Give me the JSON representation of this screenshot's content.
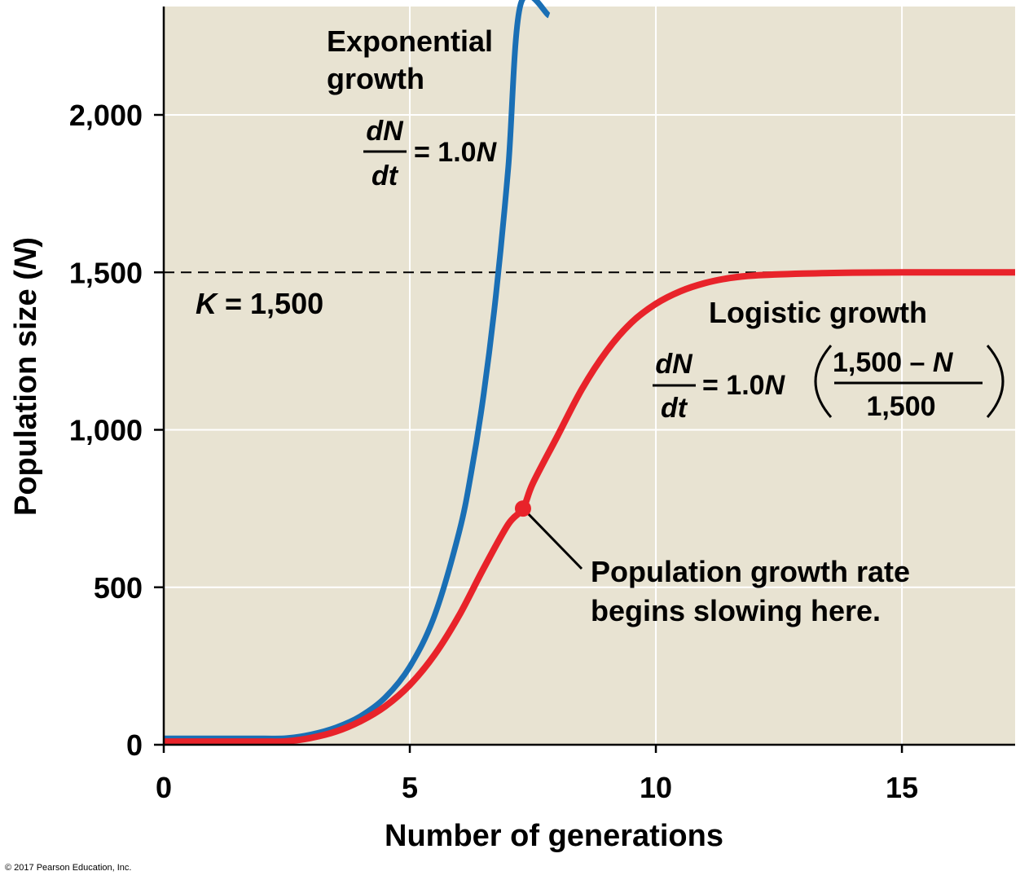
{
  "chart_data": {
    "type": "line",
    "xlabel": "Number of generations",
    "ylabel_main": "Population size (",
    "ylabel_var": "N",
    "ylabel_close": ")",
    "xlim": [
      0,
      17.3
    ],
    "ylim": [
      0,
      2400
    ],
    "x_ticks": [
      0,
      5,
      10,
      15
    ],
    "x_tick_labels": [
      "0",
      "5",
      "10",
      "15"
    ],
    "y_ticks": [
      0,
      500,
      1000,
      1500,
      2000
    ],
    "y_tick_labels": [
      "0",
      "500",
      "1,000",
      "1,500",
      "2,000"
    ],
    "grid": true,
    "series": [
      {
        "name": "Exponential growth",
        "color": "#1a6fb5",
        "x": [
          0,
          1,
          2,
          2.5,
          3,
          3.5,
          4,
          4.5,
          5,
          5.5,
          6,
          6.25,
          6.5,
          6.75,
          7,
          7.25,
          7.5,
          7.75,
          7.8
        ],
        "y": [
          20,
          20,
          20,
          21,
          33,
          55,
          91,
          150,
          248,
          409,
          674,
          866,
          1112,
          1428,
          1832,
          2350,
          2300,
          2310,
          2315
        ]
      },
      {
        "name": "Logistic growth",
        "color": "#e8232a",
        "x": [
          0,
          1,
          2,
          2.5,
          3,
          3.5,
          4,
          4.5,
          5,
          5.5,
          6,
          6.5,
          7,
          7.3,
          7.5,
          8,
          8.5,
          9,
          9.5,
          10,
          10.5,
          11,
          11.5,
          12,
          13,
          14,
          15,
          16,
          17.3
        ],
        "y": [
          10,
          10,
          10,
          11,
          22,
          42,
          75,
          122,
          190,
          285,
          410,
          560,
          700,
          750,
          830,
          980,
          1130,
          1250,
          1340,
          1400,
          1440,
          1466,
          1482,
          1490,
          1496,
          1499,
          1500,
          1500,
          1500
        ]
      }
    ],
    "carrying_capacity": {
      "value": 1500,
      "label_var": "K",
      "label_rest": " = 1,500",
      "style": "dashed"
    },
    "highlight_point": {
      "x": 7.3,
      "y": 750,
      "color": "#e8232a"
    },
    "annotations": {
      "exp_title_line1": "Exponential",
      "exp_title_line2": "growth",
      "exp_eq_num": "dN",
      "exp_eq_den": "dt",
      "exp_eq_rhs": "= 1.0",
      "exp_eq_var": "N",
      "log_title": "Logistic growth",
      "log_eq_num": "dN",
      "log_eq_den": "dt",
      "log_eq_rhs": "= 1.0",
      "log_eq_var": "N",
      "log_frac_num": "1,500 – ",
      "log_frac_num_var": "N",
      "log_frac_den": "1,500",
      "callout_line1": "Population growth rate",
      "callout_line2": "begins slowing here."
    },
    "background_color": "#e8e3d2",
    "gridline_color": "#ffffff"
  },
  "copyright": "© 2017 Pearson Education, Inc."
}
